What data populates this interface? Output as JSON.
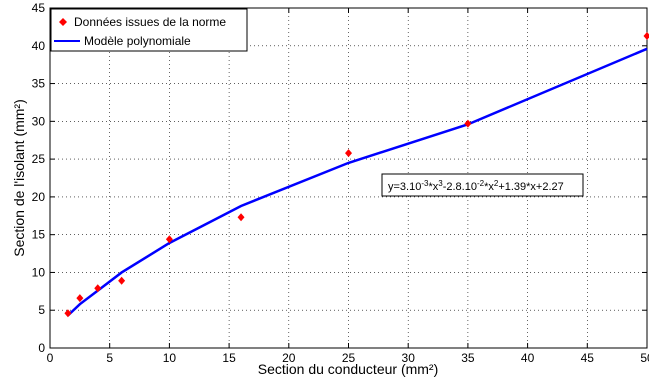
{
  "chart_data": {
    "type": "scatter",
    "xlabel": "Section du conducteur (mm²)",
    "ylabel": "Section de l'isolant (mm²)",
    "xlim": [
      0,
      50
    ],
    "ylim": [
      0,
      45
    ],
    "xticks": [
      0,
      5,
      10,
      15,
      20,
      25,
      30,
      35,
      40,
      45,
      50
    ],
    "yticks": [
      0,
      5,
      10,
      15,
      20,
      25,
      30,
      35,
      40,
      45
    ],
    "grid": true,
    "legend_position": "top-left",
    "series": [
      {
        "name": "Données issues de la norme",
        "kind": "scatter",
        "marker": "diamond",
        "color": "#ff0000",
        "x": [
          1.5,
          2.5,
          4,
          6,
          10,
          16,
          25,
          35,
          50
        ],
        "y": [
          4.6,
          6.6,
          7.9,
          8.9,
          14.4,
          17.3,
          25.8,
          29.7,
          41.3
        ]
      },
      {
        "name": "Modèle polynomiale",
        "kind": "line",
        "color": "#0000ff",
        "x": [
          1.5,
          2.5,
          4,
          6,
          10,
          16,
          25,
          35,
          50
        ],
        "y": [
          4.3,
          5.8,
          7.6,
          10.0,
          13.9,
          18.8,
          24.5,
          29.6,
          39.6
        ]
      }
    ],
    "annotation": {
      "text_parts": [
        "y=3.10",
        "-3",
        "*x",
        "3",
        "-2.8.10",
        "-2",
        "*x",
        "2",
        "+1.39*x+2.27"
      ],
      "x": 34,
      "y": 22.5
    }
  }
}
